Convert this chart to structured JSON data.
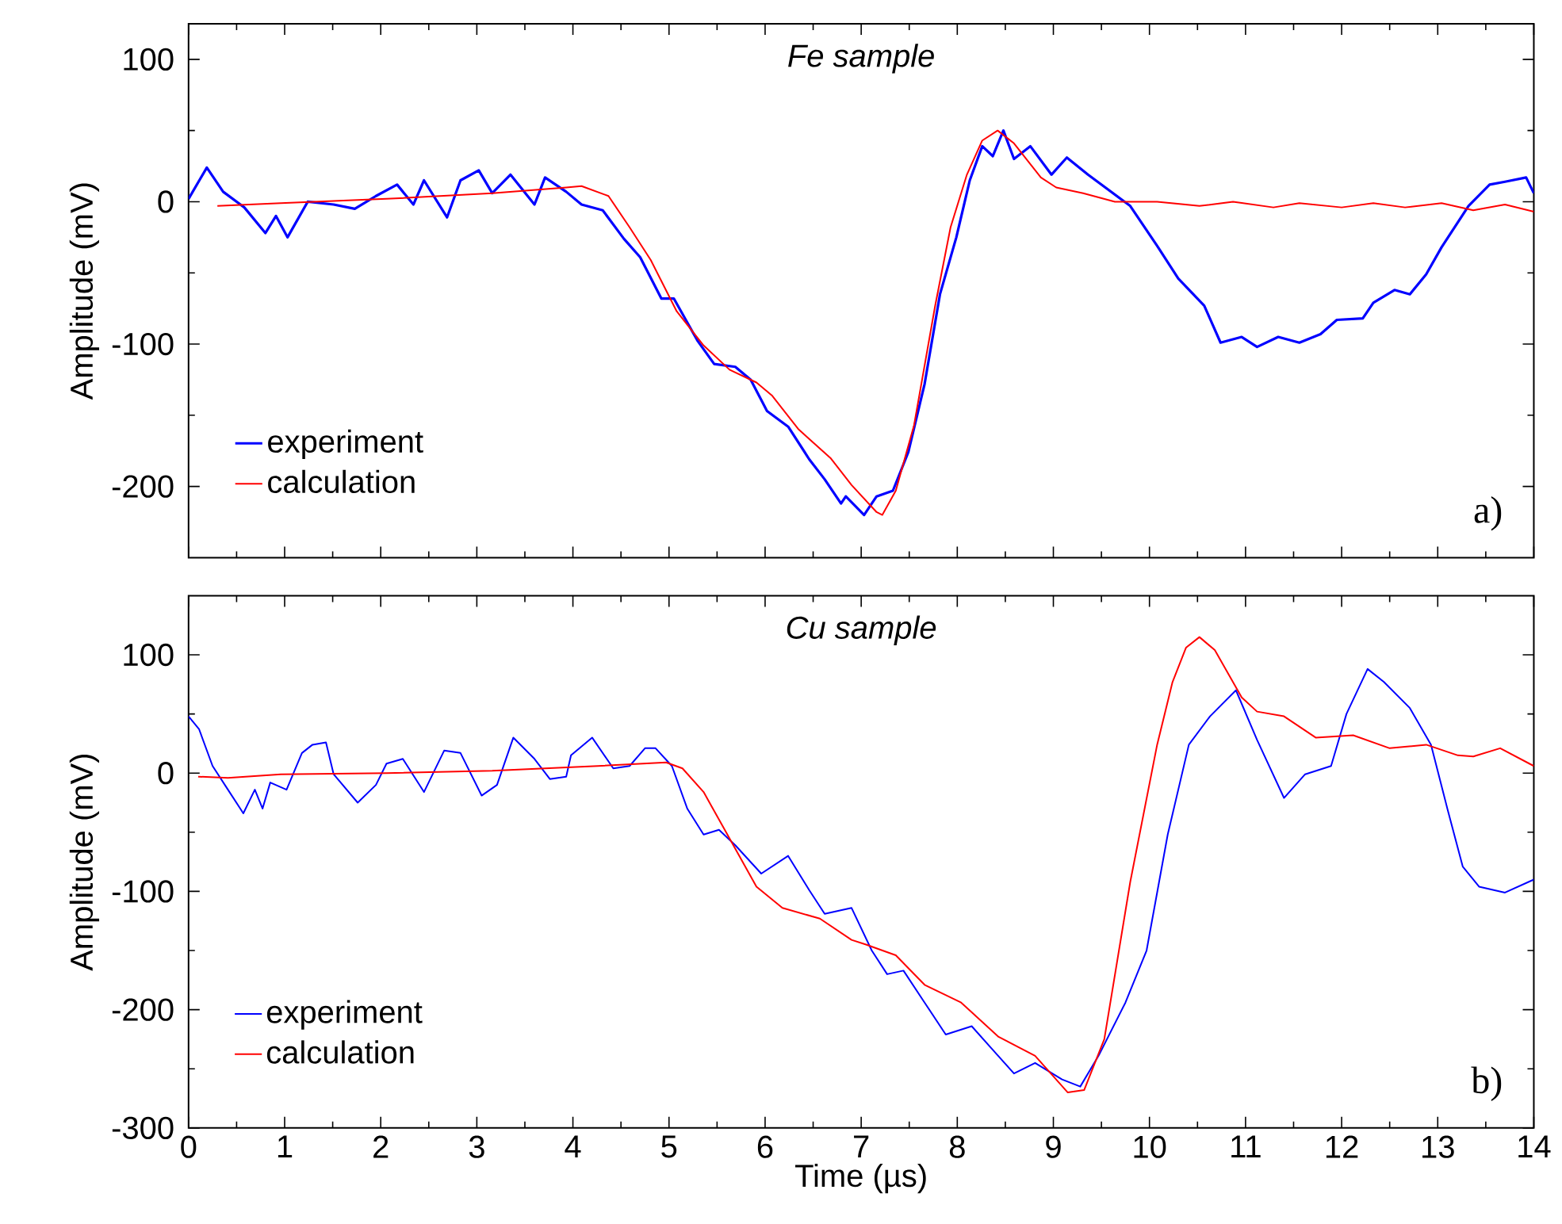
{
  "chart_data": [
    {
      "type": "line",
      "title": "Fe sample",
      "ylabel": "Amplitude (mV)",
      "xlim": [
        0,
        14
      ],
      "ylim": [
        -250,
        125
      ],
      "xticks": [
        0,
        1,
        2,
        3,
        4,
        5,
        6,
        7,
        8,
        9,
        10,
        11,
        12,
        13,
        14
      ],
      "yticks": [
        -200,
        -100,
        0,
        100
      ],
      "tick_labels": "y",
      "legend": "bottom left",
      "annotations": [
        "a)"
      ],
      "series": [
        {
          "name": "experiment",
          "color": "#0000ff",
          "x": [
            0,
            0.19,
            0.36,
            0.58,
            0.8,
            0.91,
            1.03,
            1.24,
            1.51,
            1.73,
            1.95,
            2.17,
            2.34,
            2.45,
            2.69,
            2.83,
            3.02,
            3.16,
            3.35,
            3.6,
            3.71,
            3.93,
            4.09,
            4.31,
            4.53,
            4.7,
            4.92,
            5.05,
            5.3,
            5.47,
            5.69,
            5.85,
            6.02,
            6.24,
            6.46,
            6.62,
            6.79,
            6.84,
            7.03,
            7.16,
            7.33,
            7.49,
            7.66,
            7.82,
            7.99,
            8.13,
            8.26,
            8.37,
            8.48,
            8.59,
            8.76,
            8.98,
            9.14,
            9.36,
            9.58,
            9.8,
            10.08,
            10.3,
            10.57,
            10.74,
            10.96,
            11.12,
            11.34,
            11.56,
            11.78,
            11.95,
            12.22,
            12.33,
            12.55,
            12.71,
            12.88,
            13.04,
            13.32,
            13.54,
            13.7,
            13.92,
            14.0
          ],
          "values": [
            2,
            24,
            7,
            -4,
            -22,
            -10,
            -25,
            0,
            -2,
            -5,
            4,
            12,
            -2,
            15,
            -11,
            15,
            22,
            6,
            19,
            -2,
            17,
            7,
            -2,
            -6,
            -26,
            -39,
            -68,
            -68,
            -98,
            -114,
            -116,
            -125,
            -147,
            -158,
            -181,
            -195,
            -212,
            -207,
            -220,
            -207,
            -203,
            -176,
            -128,
            -65,
            -25,
            15,
            39,
            32,
            50,
            30,
            39,
            19,
            31,
            19,
            8,
            -3,
            -31,
            -54,
            -73,
            -99,
            -95,
            -102,
            -95,
            -99,
            -93,
            -83,
            -82,
            -71,
            -62,
            -65,
            -51,
            -32,
            -3,
            12,
            14,
            17,
            6
          ]
        },
        {
          "name": "calculation",
          "color": "#ff0000",
          "x": [
            0.3,
            0.96,
            2.06,
            3.16,
            3.93,
            4.09,
            4.37,
            4.59,
            4.81,
            5.08,
            5.36,
            5.63,
            5.91,
            6.07,
            6.35,
            6.68,
            6.9,
            7.16,
            7.22,
            7.36,
            7.55,
            7.77,
            7.93,
            8.1,
            8.26,
            8.42,
            8.59,
            8.87,
            9.03,
            9.31,
            9.64,
            10.08,
            10.52,
            10.87,
            11.29,
            11.56,
            12.0,
            12.33,
            12.66,
            13.04,
            13.37,
            13.7,
            14.0
          ],
          "values": [
            -3,
            -1,
            2,
            6,
            10,
            11,
            4,
            -18,
            -41,
            -77,
            -101,
            -118,
            -127,
            -136,
            -160,
            -180,
            -199,
            -218,
            -220,
            -203,
            -157,
            -73,
            -18,
            19,
            43,
            50,
            41,
            17,
            10,
            6,
            0,
            0,
            -3,
            0,
            -4,
            -1,
            -4,
            -1,
            -4,
            -1,
            -6,
            -2,
            -7
          ]
        }
      ]
    },
    {
      "type": "line",
      "title": "Cu sample",
      "xlabel": "Time (µs)",
      "ylabel": "Amplitude (mV)",
      "xlim": [
        0,
        14
      ],
      "ylim": [
        -300,
        150
      ],
      "xticks": [
        0,
        1,
        2,
        3,
        4,
        5,
        6,
        7,
        8,
        9,
        10,
        11,
        12,
        13,
        14
      ],
      "yticks": [
        -300,
        -200,
        -100,
        0,
        100
      ],
      "legend": "bottom left",
      "annotations": [
        "b)"
      ],
      "series": [
        {
          "name": "experiment",
          "color": "#0000ff",
          "x": [
            0,
            0.11,
            0.25,
            0.41,
            0.57,
            0.69,
            0.77,
            0.85,
            1.02,
            1.18,
            1.29,
            1.43,
            1.51,
            1.76,
            1.95,
            2.06,
            2.23,
            2.45,
            2.66,
            2.83,
            3.05,
            3.21,
            3.38,
            3.6,
            3.76,
            3.93,
            3.98,
            4.2,
            4.42,
            4.59,
            4.75,
            4.86,
            5.03,
            5.19,
            5.36,
            5.52,
            5.69,
            5.96,
            6.24,
            6.46,
            6.62,
            6.9,
            7.11,
            7.27,
            7.44,
            7.66,
            7.88,
            8.15,
            8.37,
            8.59,
            8.81,
            9.09,
            9.28,
            9.47,
            9.75,
            9.97,
            10.19,
            10.41,
            10.63,
            10.9,
            11.12,
            11.4,
            11.62,
            11.89,
            12.05,
            12.27,
            12.44,
            12.71,
            12.93,
            13.1,
            13.26,
            13.43,
            13.7,
            14.0
          ],
          "values": [
            48,
            37,
            6,
            -14,
            -34,
            -14,
            -30,
            -8,
            -14,
            17,
            24,
            26,
            -1,
            -25,
            -10,
            8,
            12,
            -16,
            19,
            17,
            -19,
            -10,
            30,
            12,
            -5,
            -3,
            15,
            30,
            4,
            6,
            21,
            21,
            6,
            -30,
            -52,
            -48,
            -61,
            -85,
            -70,
            -99,
            -119,
            -114,
            -150,
            -170,
            -167,
            -194,
            -221,
            -214,
            -234,
            -254,
            -245,
            -259,
            -265,
            -239,
            -194,
            -150,
            -52,
            24,
            48,
            70,
            28,
            -21,
            -1,
            6,
            50,
            88,
            77,
            55,
            24,
            -30,
            -79,
            -96,
            -101,
            -90
          ]
        },
        {
          "name": "calculation",
          "color": "#ff0000",
          "x": [
            0.1,
            0.41,
            0.96,
            2.06,
            3.16,
            4.26,
            4.97,
            5.14,
            5.36,
            5.58,
            5.91,
            6.18,
            6.57,
            6.9,
            7.05,
            7.36,
            7.66,
            8.04,
            8.43,
            8.81,
            9.15,
            9.32,
            9.53,
            9.8,
            10.08,
            10.24,
            10.38,
            10.52,
            10.68,
            10.96,
            11.12,
            11.4,
            11.73,
            12.12,
            12.5,
            12.88,
            13.21,
            13.37,
            13.65,
            14.0
          ],
          "values": [
            -3,
            -4,
            -1,
            0,
            2,
            6,
            9,
            4,
            -16,
            -48,
            -96,
            -114,
            -123,
            -141,
            -145,
            -154,
            -179,
            -194,
            -223,
            -239,
            -270,
            -268,
            -225,
            -92,
            24,
            77,
            106,
            115,
            104,
            64,
            52,
            48,
            30,
            32,
            21,
            24,
            15,
            14,
            21,
            6
          ]
        }
      ]
    }
  ]
}
